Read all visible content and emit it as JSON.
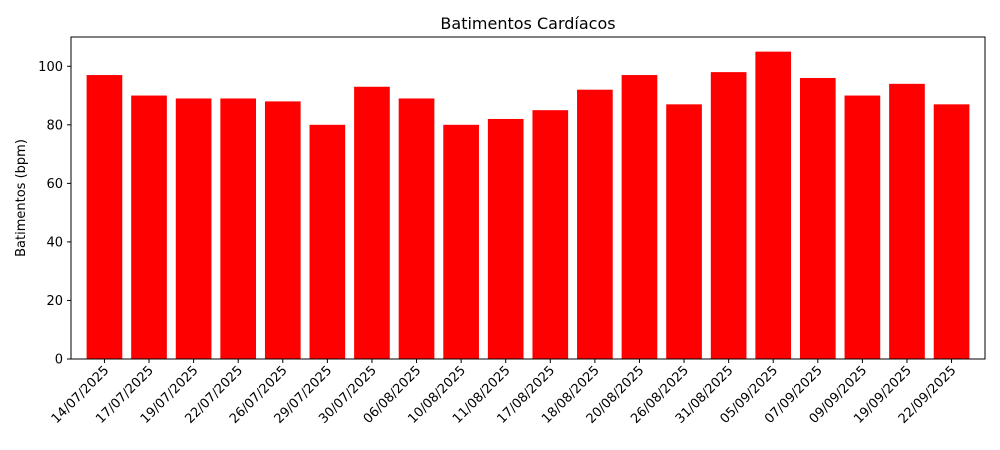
{
  "chart_data": {
    "type": "bar",
    "title": "Batimentos Cardíacos",
    "xlabel": "",
    "ylabel": "Batimentos (bpm)",
    "categories": [
      "14/07/2025",
      "17/07/2025",
      "19/07/2025",
      "22/07/2025",
      "26/07/2025",
      "29/07/2025",
      "30/07/2025",
      "06/08/2025",
      "10/08/2025",
      "11/08/2025",
      "17/08/2025",
      "18/08/2025",
      "20/08/2025",
      "26/08/2025",
      "31/08/2025",
      "05/09/2025",
      "07/09/2025",
      "09/09/2025",
      "19/09/2025",
      "22/09/2025"
    ],
    "values": [
      97,
      90,
      89,
      89,
      88,
      80,
      93,
      89,
      80,
      82,
      85,
      92,
      97,
      87,
      98,
      105,
      96,
      90,
      94,
      87
    ],
    "ylim": [
      0,
      110
    ],
    "yticks": [
      0,
      20,
      40,
      60,
      80,
      100
    ],
    "bar_color": "#ff0000",
    "grid": false
  }
}
